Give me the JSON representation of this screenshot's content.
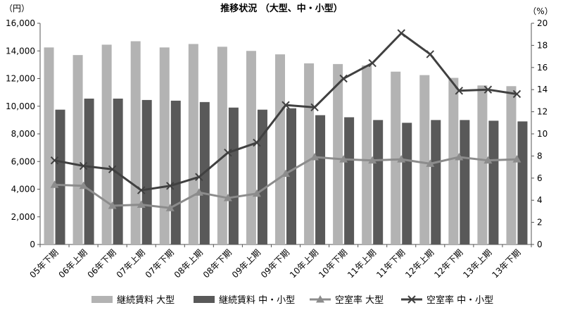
{
  "chart_data": {
    "type": "bar",
    "title": "推移状況 （大型、中・小型）",
    "y_left_unit": "（円）",
    "y_right_unit": "（%）",
    "ylim_left": [
      0,
      16000
    ],
    "ylim_right": [
      0,
      20
    ],
    "y_left_ticks": [
      "0",
      "2,000",
      "4,000",
      "6,000",
      "8,000",
      "10,000",
      "12,000",
      "14,000",
      "16,000"
    ],
    "y_right_ticks": [
      "0",
      "2",
      "4",
      "6",
      "8",
      "10",
      "12",
      "14",
      "16",
      "18",
      "20"
    ],
    "grid": false,
    "legend_position": "bottom",
    "categories": [
      "05年下期",
      "06年上期",
      "06年下期",
      "07年上期",
      "07年下期",
      "08年上期",
      "08年下期",
      "09年上期",
      "09年下期",
      "10年上期",
      "10年下期",
      "11年上期",
      "11年下期",
      "12年上期",
      "12年下期",
      "13年上期",
      "13年下期"
    ],
    "series": [
      {
        "name": "継続賃料 大型",
        "kind": "bar",
        "axis": "left",
        "color": "#b3b3b3",
        "values": [
          14250,
          13700,
          14450,
          14700,
          14250,
          14500,
          14300,
          14000,
          13750,
          13100,
          13050,
          12950,
          12500,
          12250,
          12050,
          11500,
          11450
        ]
      },
      {
        "name": "継続賃料 中・小型",
        "kind": "bar",
        "axis": "left",
        "color": "#595959",
        "values": [
          9750,
          10550,
          10550,
          10450,
          10400,
          10300,
          9900,
          9750,
          9850,
          9350,
          9200,
          9000,
          8800,
          9000,
          9000,
          8950,
          8900
        ]
      },
      {
        "name": "空室率 大型",
        "kind": "line",
        "marker": "triangle",
        "axis": "right",
        "color": "#8c8c8c",
        "values": [
          5.4,
          5.3,
          3.5,
          3.6,
          3.3,
          4.7,
          4.2,
          4.6,
          6.4,
          7.9,
          7.7,
          7.6,
          7.7,
          7.3,
          7.9,
          7.6,
          7.7
        ]
      },
      {
        "name": "空室率 中・小型",
        "kind": "line",
        "marker": "x",
        "axis": "right",
        "color": "#404040",
        "values": [
          7.6,
          7.1,
          6.8,
          4.9,
          5.3,
          6.1,
          8.3,
          9.2,
          12.6,
          12.4,
          15.0,
          16.4,
          19.1,
          17.2,
          13.9,
          14.0,
          13.6
        ]
      }
    ]
  }
}
